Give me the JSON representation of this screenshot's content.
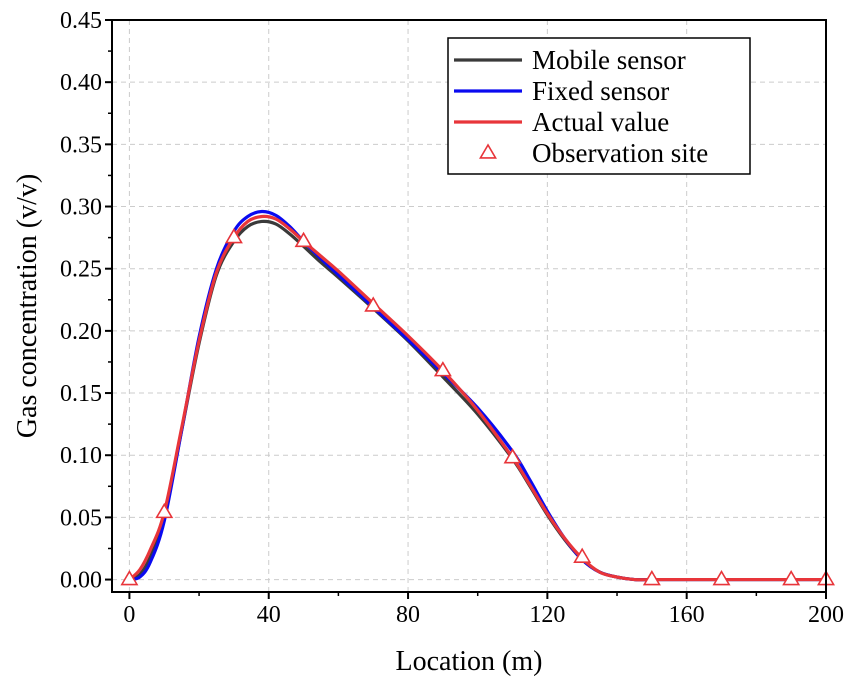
{
  "chart_data": {
    "type": "line",
    "title": "",
    "xlabel": "Location (m)",
    "ylabel": "Gas concentration (v/v)",
    "xlim": [
      -5,
      200
    ],
    "ylim": [
      -0.01,
      0.45
    ],
    "xticks": [
      0,
      40,
      80,
      120,
      160,
      200
    ],
    "xtick_labels": [
      "0",
      "40",
      "80",
      "120",
      "160",
      "200"
    ],
    "yticks": [
      0.0,
      0.05,
      0.1,
      0.15,
      0.2,
      0.25,
      0.3,
      0.35,
      0.4,
      0.45
    ],
    "ytick_labels": [
      "0.00",
      "0.05",
      "0.10",
      "0.15",
      "0.20",
      "0.25",
      "0.30",
      "0.35",
      "0.40",
      "0.45"
    ],
    "grid": true,
    "legend_position": "top-right",
    "series": [
      {
        "name": "Mobile sensor",
        "color": "#3a3a3a",
        "kind": "line",
        "x": [
          0,
          3,
          6,
          10,
          15,
          20,
          25,
          30,
          34,
          38,
          42,
          46,
          50,
          55,
          60,
          70,
          80,
          90,
          100,
          110,
          115,
          120,
          125,
          130,
          135,
          140,
          145,
          150,
          160,
          170,
          180,
          190,
          200
        ],
        "y": [
          0.0,
          0.004,
          0.018,
          0.05,
          0.12,
          0.19,
          0.245,
          0.272,
          0.284,
          0.288,
          0.286,
          0.278,
          0.268,
          0.255,
          0.243,
          0.218,
          0.192,
          0.163,
          0.133,
          0.097,
          0.075,
          0.052,
          0.032,
          0.016,
          0.006,
          0.002,
          0.0,
          0.0,
          0.0,
          0.0,
          0.0,
          0.0,
          0.0
        ]
      },
      {
        "name": "Fixed sensor",
        "color": "#0a0af0",
        "kind": "line",
        "x": [
          0,
          3,
          6,
          10,
          15,
          20,
          25,
          30,
          34,
          38,
          42,
          46,
          50,
          55,
          60,
          70,
          80,
          90,
          100,
          110,
          115,
          120,
          125,
          130,
          135,
          140,
          145,
          150,
          160,
          170,
          180,
          190,
          200
        ],
        "y": [
          0.0,
          0.002,
          0.014,
          0.047,
          0.12,
          0.195,
          0.25,
          0.28,
          0.292,
          0.296,
          0.293,
          0.284,
          0.272,
          0.258,
          0.245,
          0.219,
          0.193,
          0.166,
          0.138,
          0.103,
          0.08,
          0.055,
          0.033,
          0.016,
          0.006,
          0.002,
          0.0,
          0.0,
          0.0,
          0.0,
          0.0,
          0.0,
          0.0
        ]
      },
      {
        "name": "Actual value",
        "color": "#e8353a",
        "kind": "line",
        "x": [
          0,
          3,
          6,
          10,
          15,
          20,
          25,
          30,
          34,
          38,
          42,
          46,
          50,
          55,
          60,
          70,
          80,
          90,
          100,
          110,
          115,
          120,
          125,
          130,
          135,
          140,
          145,
          150,
          160,
          170,
          180,
          190,
          200
        ],
        "y": [
          0.0,
          0.008,
          0.024,
          0.054,
          0.122,
          0.192,
          0.247,
          0.275,
          0.288,
          0.292,
          0.29,
          0.282,
          0.272,
          0.26,
          0.248,
          0.222,
          0.196,
          0.168,
          0.136,
          0.098,
          0.076,
          0.053,
          0.033,
          0.017,
          0.006,
          0.002,
          0.0,
          0.0,
          0.0,
          0.0,
          0.0,
          0.0,
          0.0
        ]
      },
      {
        "name": "Observation site",
        "color": "#e8353a",
        "kind": "marker",
        "marker": "triangle",
        "x": [
          0,
          10,
          30,
          50,
          70,
          90,
          110,
          130,
          150,
          170,
          190,
          200
        ],
        "y": [
          0.0,
          0.054,
          0.275,
          0.272,
          0.22,
          0.168,
          0.098,
          0.018,
          0.0,
          0.0,
          0.0,
          0.0
        ]
      }
    ]
  }
}
